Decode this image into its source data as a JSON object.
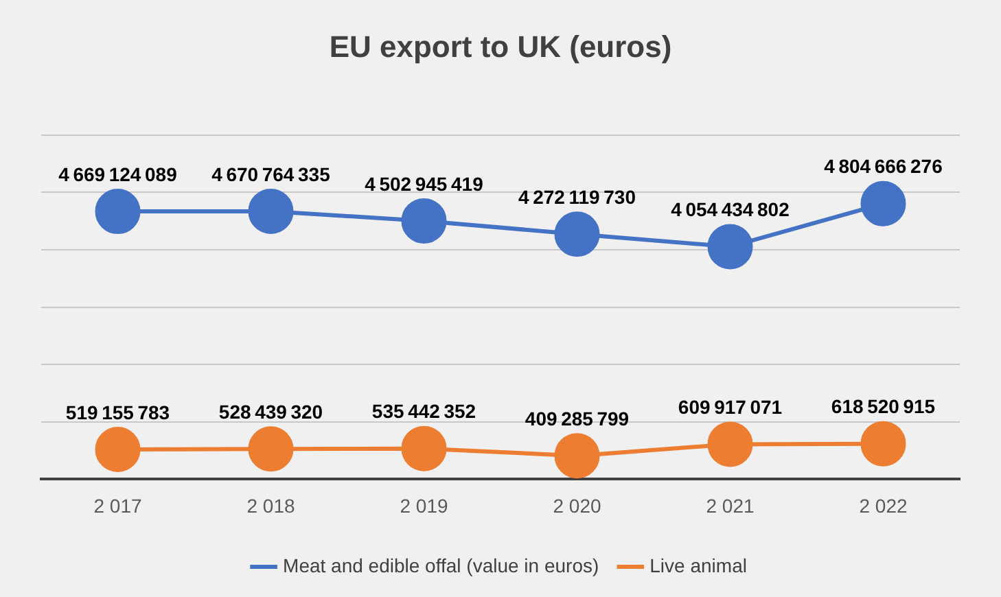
{
  "chart_data": {
    "type": "line",
    "title": "EU export to UK (euros)",
    "categories": [
      "2 017",
      "2 018",
      "2 019",
      "2 020",
      "2 021",
      "2 022"
    ],
    "series": [
      {
        "name": "Meat and edible offal (value in euros)",
        "color": "#4472c4",
        "values": [
          4669124089,
          4670764335,
          4502945419,
          4272119730,
          4054434802,
          4804666276
        ]
      },
      {
        "name": "Live animal",
        "color": "#ed7d31",
        "values": [
          519155783,
          528439320,
          535442352,
          409285799,
          609917071,
          618520915
        ]
      }
    ],
    "ylim": [
      0,
      6000000000
    ],
    "yticks": [
      {
        "value": 0,
        "label": null
      },
      {
        "value": 1000000000,
        "label": null
      },
      {
        "value": 2000000000,
        "label": null
      },
      {
        "value": 3000000000,
        "label": null
      },
      {
        "value": 4000000000,
        "label": null
      },
      {
        "value": 5000000000,
        "label": null
      },
      {
        "value": 6000000000,
        "label": null
      }
    ],
    "grid": "y",
    "legend": "bottom",
    "marker": "circle",
    "line_style": "solid",
    "data_labels": true
  }
}
